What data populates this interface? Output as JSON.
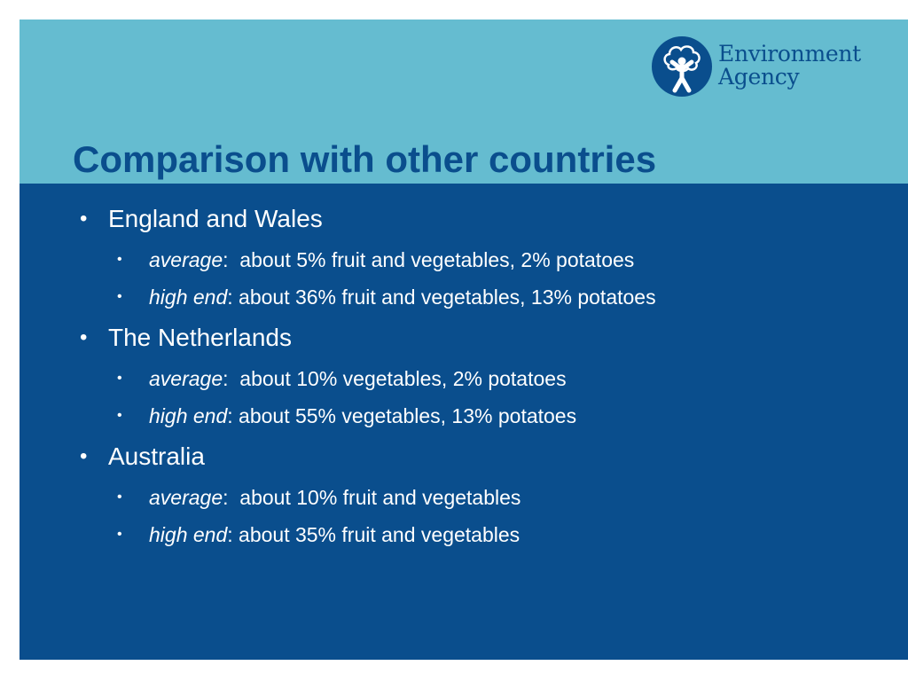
{
  "logo": {
    "line1": "Environment",
    "line2": "Agency",
    "emblem_icon": "tree-figure-emblem-icon"
  },
  "slide": {
    "title": "Comparison with other countries",
    "bullet_char": "•",
    "sections": [
      {
        "heading": "England and Wales",
        "items": [
          {
            "label": "average",
            "sep": ":  ",
            "text": "about 5% fruit and vegetables, 2% potatoes"
          },
          {
            "label": "high end",
            "sep": ": ",
            "text": "about 36% fruit and vegetables, 13% potatoes"
          }
        ]
      },
      {
        "heading": "The Netherlands",
        "items": [
          {
            "label": "average",
            "sep": ":  ",
            "text": "about 10% vegetables, 2% potatoes"
          },
          {
            "label": "high end",
            "sep": ": ",
            "text": "about 55% vegetables, 13% potatoes"
          }
        ]
      },
      {
        "heading": "Australia",
        "items": [
          {
            "label": "average",
            "sep": ":  ",
            "text": "about 10% fruit and vegetables"
          },
          {
            "label": "high end",
            "sep": ": ",
            "text": "about 35% fruit and vegetables"
          }
        ]
      }
    ]
  },
  "colors": {
    "page_background": "#ffffff",
    "header_band": "#65bcd0",
    "body_background": "#0a4e8d",
    "title_text": "#0a4e8d",
    "body_text": "#ffffff"
  }
}
